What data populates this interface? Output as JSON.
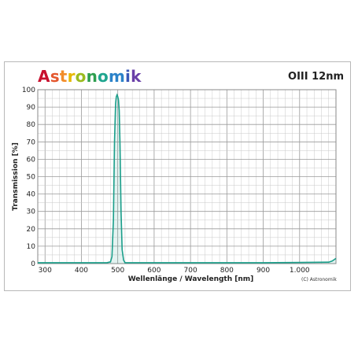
{
  "brand": {
    "letters": [
      {
        "ch": "A",
        "color": "#c8102e"
      },
      {
        "ch": "s",
        "color": "#e4572e"
      },
      {
        "ch": "t",
        "color": "#f28c28"
      },
      {
        "ch": "r",
        "color": "#e6b800"
      },
      {
        "ch": "o",
        "color": "#9bbb1e"
      },
      {
        "ch": "n",
        "color": "#2e9e4f"
      },
      {
        "ch": "o",
        "color": "#1fa58f"
      },
      {
        "ch": "m",
        "color": "#2b82c9"
      },
      {
        "ch": "i",
        "color": "#3957b8"
      },
      {
        "ch": "k",
        "color": "#6a3fa8"
      }
    ]
  },
  "filter_name": "OIII 12nm",
  "copyright": "(C) Astronomik",
  "chart_data": {
    "type": "line",
    "title": "",
    "xlabel": "Wellenlänge / Wavelength [nm]",
    "ylabel": "Transmission [%]",
    "xlim": [
      280,
      1100
    ],
    "ylim": [
      0,
      100
    ],
    "x_ticks": [
      {
        "value": 300,
        "label": "300"
      },
      {
        "value": 400,
        "label": "400"
      },
      {
        "value": 500,
        "label": "500"
      },
      {
        "value": 600,
        "label": "600"
      },
      {
        "value": 700,
        "label": "700"
      },
      {
        "value": 800,
        "label": "800"
      },
      {
        "value": 900,
        "label": "900"
      },
      {
        "value": 1000,
        "label": "1.000"
      }
    ],
    "y_ticks": [
      0,
      10,
      20,
      30,
      40,
      50,
      60,
      70,
      80,
      90,
      100
    ],
    "grid": true,
    "series_color": "#1a9e8a",
    "series": [
      {
        "x": [
          280,
          470,
          480,
          484,
          488,
          491,
          494,
          496,
          498,
          500,
          502,
          504,
          506,
          509,
          512,
          516,
          520,
          530,
          700,
          900,
          1080,
          1090,
          1100
        ],
        "y": [
          0.5,
          0.5,
          1,
          4,
          25,
          70,
          92,
          96,
          97,
          96,
          94,
          88,
          70,
          30,
          8,
          2,
          0.5,
          0.5,
          0.5,
          0.5,
          0.8,
          1.5,
          3
        ]
      }
    ]
  }
}
